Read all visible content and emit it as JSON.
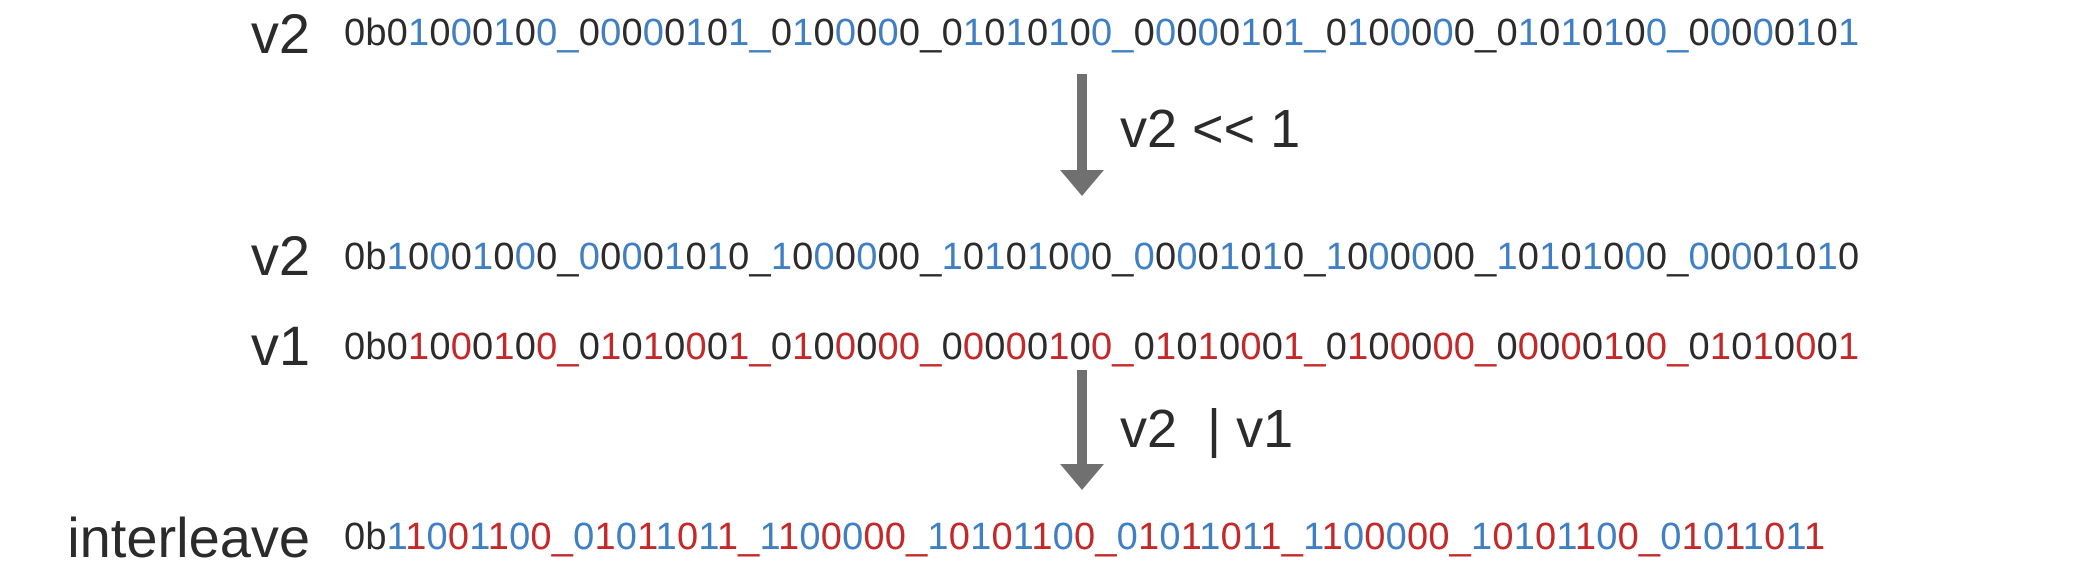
{
  "rows": [
    {
      "label": "v2",
      "segments": [
        {
          "t": "0b0",
          "c": "k"
        },
        {
          "t": "1",
          "c": "b"
        },
        {
          "t": "0",
          "c": "k"
        },
        {
          "t": "0",
          "c": "b"
        },
        {
          "t": "0",
          "c": "k"
        },
        {
          "t": "1",
          "c": "b"
        },
        {
          "t": "0",
          "c": "k"
        },
        {
          "t": "0_",
          "c": "b"
        },
        {
          "t": "0",
          "c": "k"
        },
        {
          "t": "0",
          "c": "b"
        },
        {
          "t": "0",
          "c": "k"
        },
        {
          "t": "0",
          "c": "b"
        },
        {
          "t": "0",
          "c": "k"
        },
        {
          "t": "1",
          "c": "b"
        },
        {
          "t": "0",
          "c": "k"
        },
        {
          "t": "1_",
          "c": "b"
        },
        {
          "t": "0",
          "c": "k"
        },
        {
          "t": "1",
          "c": "b"
        },
        {
          "t": "0",
          "c": "k"
        },
        {
          "t": "0",
          "c": "b"
        },
        {
          "t": "0",
          "c": "k"
        },
        {
          "t": "0",
          "c": "b"
        },
        {
          "t": "0_",
          "c": "k"
        },
        {
          "t": "0",
          "c": "k"
        },
        {
          "t": "1",
          "c": "b"
        },
        {
          "t": "0",
          "c": "k"
        },
        {
          "t": "1",
          "c": "b"
        },
        {
          "t": "0",
          "c": "k"
        },
        {
          "t": "1",
          "c": "b"
        },
        {
          "t": "0",
          "c": "k"
        },
        {
          "t": "0_",
          "c": "b"
        },
        {
          "t": "0",
          "c": "k"
        },
        {
          "t": "0",
          "c": "b"
        },
        {
          "t": "0",
          "c": "k"
        },
        {
          "t": "0",
          "c": "b"
        },
        {
          "t": "0",
          "c": "k"
        },
        {
          "t": "1",
          "c": "b"
        },
        {
          "t": "0",
          "c": "k"
        },
        {
          "t": "1_",
          "c": "b"
        },
        {
          "t": "0",
          "c": "k"
        },
        {
          "t": "1",
          "c": "b"
        },
        {
          "t": "0",
          "c": "k"
        },
        {
          "t": "0",
          "c": "b"
        },
        {
          "t": "0",
          "c": "k"
        },
        {
          "t": "0",
          "c": "b"
        },
        {
          "t": "0_",
          "c": "k"
        },
        {
          "t": "0",
          "c": "k"
        },
        {
          "t": "1",
          "c": "b"
        },
        {
          "t": "0",
          "c": "k"
        },
        {
          "t": "1",
          "c": "b"
        },
        {
          "t": "0",
          "c": "k"
        },
        {
          "t": "1",
          "c": "b"
        },
        {
          "t": "0",
          "c": "k"
        },
        {
          "t": "0_",
          "c": "b"
        },
        {
          "t": "0",
          "c": "k"
        },
        {
          "t": "0",
          "c": "b"
        },
        {
          "t": "0",
          "c": "k"
        },
        {
          "t": "0",
          "c": "b"
        },
        {
          "t": "0",
          "c": "k"
        },
        {
          "t": "1",
          "c": "b"
        },
        {
          "t": "0",
          "c": "k"
        },
        {
          "t": "1",
          "c": "b"
        }
      ]
    },
    {
      "label": "v2",
      "segments": [
        {
          "t": "0b",
          "c": "k"
        },
        {
          "t": "1",
          "c": "b"
        },
        {
          "t": "0",
          "c": "k"
        },
        {
          "t": "0",
          "c": "b"
        },
        {
          "t": "0",
          "c": "k"
        },
        {
          "t": "1",
          "c": "b"
        },
        {
          "t": "0",
          "c": "k"
        },
        {
          "t": "0",
          "c": "b"
        },
        {
          "t": "0_",
          "c": "k"
        },
        {
          "t": "0",
          "c": "b"
        },
        {
          "t": "0",
          "c": "k"
        },
        {
          "t": "0",
          "c": "b"
        },
        {
          "t": "0",
          "c": "k"
        },
        {
          "t": "1",
          "c": "b"
        },
        {
          "t": "0",
          "c": "k"
        },
        {
          "t": "1",
          "c": "b"
        },
        {
          "t": "0_",
          "c": "k"
        },
        {
          "t": "1",
          "c": "b"
        },
        {
          "t": "0",
          "c": "k"
        },
        {
          "t": "0",
          "c": "b"
        },
        {
          "t": "0",
          "c": "k"
        },
        {
          "t": "0",
          "c": "b"
        },
        {
          "t": "0",
          "c": "k"
        },
        {
          "t": "0_",
          "c": "k"
        },
        {
          "t": "1",
          "c": "b"
        },
        {
          "t": "0",
          "c": "k"
        },
        {
          "t": "1",
          "c": "b"
        },
        {
          "t": "0",
          "c": "k"
        },
        {
          "t": "1",
          "c": "b"
        },
        {
          "t": "0",
          "c": "k"
        },
        {
          "t": "0",
          "c": "b"
        },
        {
          "t": "0_",
          "c": "k"
        },
        {
          "t": "0",
          "c": "b"
        },
        {
          "t": "0",
          "c": "k"
        },
        {
          "t": "0",
          "c": "b"
        },
        {
          "t": "0",
          "c": "k"
        },
        {
          "t": "1",
          "c": "b"
        },
        {
          "t": "0",
          "c": "k"
        },
        {
          "t": "1",
          "c": "b"
        },
        {
          "t": "0_",
          "c": "k"
        },
        {
          "t": "1",
          "c": "b"
        },
        {
          "t": "0",
          "c": "k"
        },
        {
          "t": "0",
          "c": "b"
        },
        {
          "t": "0",
          "c": "k"
        },
        {
          "t": "0",
          "c": "b"
        },
        {
          "t": "0",
          "c": "k"
        },
        {
          "t": "0_",
          "c": "k"
        },
        {
          "t": "1",
          "c": "b"
        },
        {
          "t": "0",
          "c": "k"
        },
        {
          "t": "1",
          "c": "b"
        },
        {
          "t": "0",
          "c": "k"
        },
        {
          "t": "1",
          "c": "b"
        },
        {
          "t": "0",
          "c": "k"
        },
        {
          "t": "0",
          "c": "b"
        },
        {
          "t": "0_",
          "c": "k"
        },
        {
          "t": "0",
          "c": "b"
        },
        {
          "t": "0",
          "c": "k"
        },
        {
          "t": "0",
          "c": "b"
        },
        {
          "t": "0",
          "c": "k"
        },
        {
          "t": "1",
          "c": "b"
        },
        {
          "t": "0",
          "c": "k"
        },
        {
          "t": "1",
          "c": "b"
        },
        {
          "t": "0",
          "c": "k"
        }
      ]
    },
    {
      "label": "v1",
      "segments": [
        {
          "t": "0b0",
          "c": "k"
        },
        {
          "t": "1",
          "c": "r"
        },
        {
          "t": "0",
          "c": "k"
        },
        {
          "t": "0",
          "c": "r"
        },
        {
          "t": "0",
          "c": "k"
        },
        {
          "t": "1",
          "c": "r"
        },
        {
          "t": "0",
          "c": "k"
        },
        {
          "t": "0_",
          "c": "r"
        },
        {
          "t": "0",
          "c": "k"
        },
        {
          "t": "1",
          "c": "r"
        },
        {
          "t": "0",
          "c": "k"
        },
        {
          "t": "1",
          "c": "r"
        },
        {
          "t": "0",
          "c": "k"
        },
        {
          "t": "0",
          "c": "r"
        },
        {
          "t": "0",
          "c": "k"
        },
        {
          "t": "1_",
          "c": "r"
        },
        {
          "t": "0",
          "c": "k"
        },
        {
          "t": "1",
          "c": "r"
        },
        {
          "t": "0",
          "c": "k"
        },
        {
          "t": "0",
          "c": "r"
        },
        {
          "t": "0",
          "c": "k"
        },
        {
          "t": "0",
          "c": "r"
        },
        {
          "t": "0_",
          "c": "r"
        },
        {
          "t": "0",
          "c": "k"
        },
        {
          "t": "0",
          "c": "r"
        },
        {
          "t": "0",
          "c": "k"
        },
        {
          "t": "0",
          "c": "r"
        },
        {
          "t": "0",
          "c": "k"
        },
        {
          "t": "1",
          "c": "r"
        },
        {
          "t": "0",
          "c": "k"
        },
        {
          "t": "0_",
          "c": "r"
        },
        {
          "t": "0",
          "c": "k"
        },
        {
          "t": "1",
          "c": "r"
        },
        {
          "t": "0",
          "c": "k"
        },
        {
          "t": "1",
          "c": "r"
        },
        {
          "t": "0",
          "c": "k"
        },
        {
          "t": "0",
          "c": "r"
        },
        {
          "t": "0",
          "c": "k"
        },
        {
          "t": "1_",
          "c": "r"
        },
        {
          "t": "0",
          "c": "k"
        },
        {
          "t": "1",
          "c": "r"
        },
        {
          "t": "0",
          "c": "k"
        },
        {
          "t": "0",
          "c": "r"
        },
        {
          "t": "0",
          "c": "k"
        },
        {
          "t": "0",
          "c": "r"
        },
        {
          "t": "0_",
          "c": "r"
        },
        {
          "t": "0",
          "c": "k"
        },
        {
          "t": "0",
          "c": "r"
        },
        {
          "t": "0",
          "c": "k"
        },
        {
          "t": "0",
          "c": "r"
        },
        {
          "t": "0",
          "c": "k"
        },
        {
          "t": "1",
          "c": "r"
        },
        {
          "t": "0",
          "c": "k"
        },
        {
          "t": "0_",
          "c": "r"
        },
        {
          "t": "0",
          "c": "k"
        },
        {
          "t": "1",
          "c": "r"
        },
        {
          "t": "0",
          "c": "k"
        },
        {
          "t": "1",
          "c": "r"
        },
        {
          "t": "0",
          "c": "k"
        },
        {
          "t": "0",
          "c": "r"
        },
        {
          "t": "0",
          "c": "k"
        },
        {
          "t": "1",
          "c": "r"
        }
      ]
    },
    {
      "label": "interleave",
      "segments": [
        {
          "t": "0b",
          "c": "k"
        },
        {
          "t": "1",
          "c": "b"
        },
        {
          "t": "1",
          "c": "r"
        },
        {
          "t": "0",
          "c": "b"
        },
        {
          "t": "0",
          "c": "r"
        },
        {
          "t": "1",
          "c": "b"
        },
        {
          "t": "1",
          "c": "r"
        },
        {
          "t": "0",
          "c": "b"
        },
        {
          "t": "0_",
          "c": "r"
        },
        {
          "t": "0",
          "c": "b"
        },
        {
          "t": "1",
          "c": "r"
        },
        {
          "t": "0",
          "c": "b"
        },
        {
          "t": "1",
          "c": "r"
        },
        {
          "t": "1",
          "c": "b"
        },
        {
          "t": "0",
          "c": "r"
        },
        {
          "t": "1",
          "c": "b"
        },
        {
          "t": "1_",
          "c": "r"
        },
        {
          "t": "1",
          "c": "b"
        },
        {
          "t": "1",
          "c": "r"
        },
        {
          "t": "0",
          "c": "b"
        },
        {
          "t": "0",
          "c": "r"
        },
        {
          "t": "0",
          "c": "b"
        },
        {
          "t": "0",
          "c": "r"
        },
        {
          "t": "0_",
          "c": "r"
        },
        {
          "t": "1",
          "c": "b"
        },
        {
          "t": "0",
          "c": "r"
        },
        {
          "t": "1",
          "c": "b"
        },
        {
          "t": "0",
          "c": "r"
        },
        {
          "t": "1",
          "c": "b"
        },
        {
          "t": "1",
          "c": "r"
        },
        {
          "t": "0",
          "c": "b"
        },
        {
          "t": "0_",
          "c": "r"
        },
        {
          "t": "0",
          "c": "b"
        },
        {
          "t": "1",
          "c": "r"
        },
        {
          "t": "0",
          "c": "b"
        },
        {
          "t": "1",
          "c": "r"
        },
        {
          "t": "1",
          "c": "b"
        },
        {
          "t": "0",
          "c": "r"
        },
        {
          "t": "1",
          "c": "b"
        },
        {
          "t": "1_",
          "c": "r"
        },
        {
          "t": "1",
          "c": "b"
        },
        {
          "t": "1",
          "c": "r"
        },
        {
          "t": "0",
          "c": "b"
        },
        {
          "t": "0",
          "c": "r"
        },
        {
          "t": "0",
          "c": "b"
        },
        {
          "t": "0",
          "c": "r"
        },
        {
          "t": "0_",
          "c": "r"
        },
        {
          "t": "1",
          "c": "b"
        },
        {
          "t": "0",
          "c": "r"
        },
        {
          "t": "1",
          "c": "b"
        },
        {
          "t": "0",
          "c": "r"
        },
        {
          "t": "1",
          "c": "b"
        },
        {
          "t": "1",
          "c": "r"
        },
        {
          "t": "0",
          "c": "b"
        },
        {
          "t": "0_",
          "c": "r"
        },
        {
          "t": "0",
          "c": "b"
        },
        {
          "t": "1",
          "c": "r"
        },
        {
          "t": "0",
          "c": "b"
        },
        {
          "t": "1",
          "c": "r"
        },
        {
          "t": "1",
          "c": "b"
        },
        {
          "t": "0",
          "c": "r"
        },
        {
          "t": "1",
          "c": "b"
        },
        {
          "t": "1",
          "c": "r"
        }
      ]
    }
  ],
  "operations": [
    {
      "label": "v2 << 1"
    },
    {
      "label": "v2  | v1"
    }
  ],
  "colors": {
    "text": "#2b2b2b",
    "blue": "#3f80c4",
    "red": "#c42828",
    "arrow": "#707070"
  }
}
